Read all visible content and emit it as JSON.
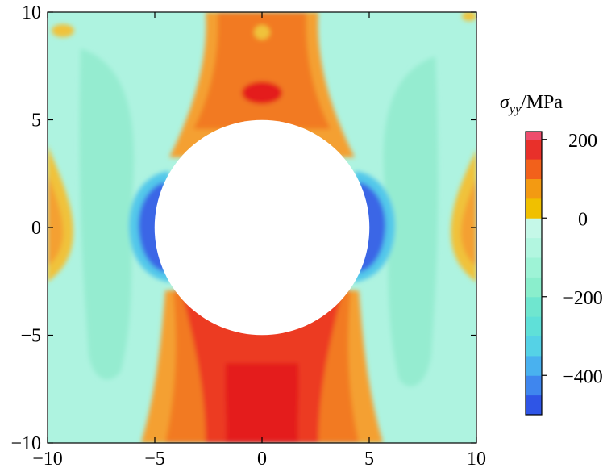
{
  "chart_data": {
    "type": "heatmap",
    "title": "",
    "xlabel": "",
    "ylabel": "",
    "xlim": [
      -10,
      10
    ],
    "ylim": [
      -10,
      10
    ],
    "x_ticks": [
      -10,
      -5,
      0,
      5,
      10
    ],
    "y_ticks": [
      -10,
      -5,
      0,
      5,
      10
    ],
    "x_tick_labels": [
      "−10",
      "−5",
      "0",
      "5",
      "10"
    ],
    "y_tick_labels": [
      "−10",
      "−5",
      "0",
      "5",
      "10"
    ],
    "hole": {
      "center": [
        0,
        0
      ],
      "radius": 5
    },
    "colorbar": {
      "title": "σ",
      "title_subscript": "yy",
      "title_unit": "/MPa",
      "range": [
        -500,
        200
      ],
      "ticks": [
        200,
        0,
        -200,
        -400
      ],
      "tick_labels": [
        "200",
        "0",
        "−200",
        "−400"
      ],
      "colors": [
        {
          "from": -500,
          "to": -450,
          "color": "#2f55e6"
        },
        {
          "from": -450,
          "to": -400,
          "color": "#3f86ee"
        },
        {
          "from": -400,
          "to": -350,
          "color": "#49b1ef"
        },
        {
          "from": -350,
          "to": -300,
          "color": "#55d2e6"
        },
        {
          "from": -300,
          "to": -250,
          "color": "#5fe0d8"
        },
        {
          "from": -250,
          "to": -200,
          "color": "#6fe6cf"
        },
        {
          "from": -200,
          "to": -150,
          "color": "#8aeecc"
        },
        {
          "from": -150,
          "to": -100,
          "color": "#9ef3d6"
        },
        {
          "from": -100,
          "to": -50,
          "color": "#b2f6e0"
        },
        {
          "from": -50,
          "to": 0,
          "color": "#c5f8e8"
        },
        {
          "from": 0,
          "to": 50,
          "color": "#f0c000"
        },
        {
          "from": 50,
          "to": 100,
          "color": "#f39a12"
        },
        {
          "from": 100,
          "to": 150,
          "color": "#f2611b"
        },
        {
          "from": 150,
          "to": 200,
          "color": "#e8302a"
        },
        {
          "from": 200,
          "to": 220,
          "color": "#ee4d6d"
        }
      ]
    },
    "colors": {
      "background": "#aef3e0",
      "light_tension": "#f4a030",
      "mid_tension": "#f27a20",
      "high_tension": "#ec3a22",
      "peak_tension": "#e41e1e",
      "compression_light": "#52c8ea",
      "compression": "#3a66e6",
      "low_compression": "#95ecd0",
      "yellow": "#f0c23a"
    }
  }
}
